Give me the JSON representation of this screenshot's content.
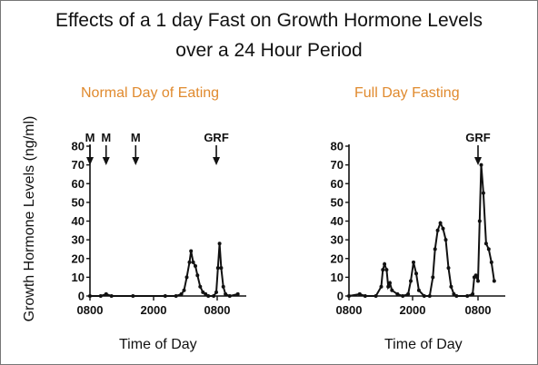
{
  "title_line_1": "Effects of a 1 day Fast on Growth Hormone Levels",
  "title_line_2": "over a 24 Hour Period",
  "ylabel": "Growth Hormone Levels (ng/ml)",
  "chart_data": [
    {
      "type": "line",
      "title": "Normal Day of Eating",
      "xlabel": "Time of Day",
      "ylabel": "Growth Hormone Levels (ng/ml)",
      "ylim": [
        0,
        80
      ],
      "yticks": [
        "0",
        "10",
        "20",
        "30",
        "40",
        "50",
        "60",
        "70",
        "80"
      ],
      "xticks": [
        "0800",
        "2000",
        "0800"
      ],
      "x_unit": "hours since 0800",
      "series": [
        {
          "values": [
            [
              0,
              0
            ],
            [
              2,
              0
            ],
            [
              3,
              1
            ],
            [
              4,
              0
            ],
            [
              8,
              0
            ],
            [
              14,
              0
            ],
            [
              16,
              0
            ],
            [
              17,
              1
            ],
            [
              17.5,
              3
            ],
            [
              18,
              10
            ],
            [
              18.5,
              18
            ],
            [
              18.8,
              24
            ],
            [
              19.2,
              18
            ],
            [
              19.6,
              16
            ],
            [
              20,
              11
            ],
            [
              20.5,
              5
            ],
            [
              21,
              2
            ],
            [
              21.5,
              1
            ],
            [
              22,
              0
            ],
            [
              23,
              0
            ],
            [
              23.5,
              2
            ],
            [
              23.8,
              15
            ],
            [
              24.1,
              28
            ],
            [
              24.4,
              15
            ],
            [
              24.8,
              5
            ],
            [
              25.2,
              1
            ],
            [
              26,
              0
            ],
            [
              27.5,
              1
            ]
          ]
        }
      ],
      "markers": [
        {
          "label": "M",
          "x": 0
        },
        {
          "label": "M",
          "x": 3
        },
        {
          "label": "M",
          "x": 8.5
        },
        {
          "label": "GRF",
          "x": 23.5
        }
      ]
    },
    {
      "type": "line",
      "title": "Full Day Fasting",
      "xlabel": "Time of Day",
      "ylabel": "Growth Hormone Levels (ng/ml)",
      "ylim": [
        0,
        80
      ],
      "yticks": [
        "0",
        "10",
        "20",
        "30",
        "40",
        "50",
        "60",
        "70",
        "80"
      ],
      "xticks": [
        "0800",
        "2000",
        "0800"
      ],
      "x_unit": "hours since 0800",
      "series": [
        {
          "values": [
            [
              0,
              0
            ],
            [
              2,
              1
            ],
            [
              3,
              0
            ],
            [
              5,
              0
            ],
            [
              6,
              5
            ],
            [
              6.3,
              14
            ],
            [
              6.6,
              17
            ],
            [
              7,
              14
            ],
            [
              7.3,
              5
            ],
            [
              7.6,
              7
            ],
            [
              8,
              3
            ],
            [
              9,
              1
            ],
            [
              10,
              0
            ],
            [
              11,
              1
            ],
            [
              11.5,
              8
            ],
            [
              12,
              18
            ],
            [
              12.5,
              12
            ],
            [
              13,
              3
            ],
            [
              14,
              0
            ],
            [
              15,
              0
            ],
            [
              15.6,
              10
            ],
            [
              16,
              25
            ],
            [
              16.5,
              35
            ],
            [
              17,
              39
            ],
            [
              17.5,
              36
            ],
            [
              18,
              30
            ],
            [
              18.5,
              15
            ],
            [
              19,
              5
            ],
            [
              19.5,
              1
            ],
            [
              20,
              0
            ],
            [
              22,
              0
            ],
            [
              23,
              1
            ],
            [
              23.3,
              10
            ],
            [
              23.6,
              11
            ],
            [
              24,
              8
            ],
            [
              24.3,
              40
            ],
            [
              24.6,
              70
            ],
            [
              25,
              55
            ],
            [
              25.5,
              28
            ],
            [
              26,
              25
            ],
            [
              26.5,
              18
            ],
            [
              27,
              8
            ]
          ]
        }
      ],
      "markers": [
        {
          "label": "GRF",
          "x": 24
        }
      ]
    }
  ]
}
